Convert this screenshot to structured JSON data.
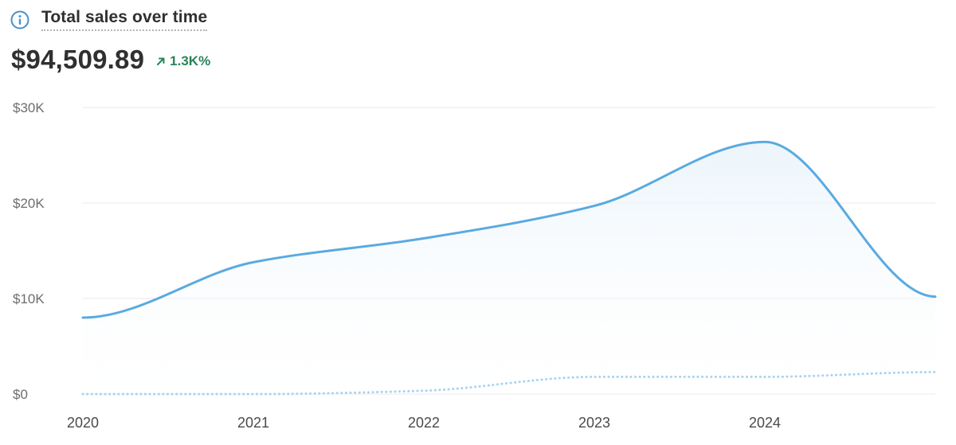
{
  "header": {
    "title": "Total sales over time"
  },
  "summary": {
    "total": "$94,509.89",
    "change": "1.3K%",
    "change_direction": "up",
    "change_color": "#29845a"
  },
  "icons": {
    "info": "info-icon",
    "change": "arrow-up-right-icon"
  },
  "colors": {
    "primary_line": "#5aaae0",
    "comparison_line": "#a9d3ef",
    "area_fill_top": "#eaf4fb",
    "grid": "#e8e8e8"
  },
  "chart_data": {
    "type": "area",
    "title": "Total sales over time",
    "xlabel": "",
    "ylabel": "",
    "ylim": [
      0,
      30000
    ],
    "grid": true,
    "y_ticks": [
      0,
      10000,
      20000,
      30000
    ],
    "y_tick_labels": [
      "$0",
      "$10K",
      "$20K",
      "$30K"
    ],
    "x_ticks": [
      "2020",
      "2021",
      "2022",
      "2023",
      "2024"
    ],
    "x": [
      0,
      1,
      2,
      3,
      4,
      5
    ],
    "series": [
      {
        "style": "solid",
        "values": [
          8000,
          13800,
          16300,
          19700,
          26400,
          10200
        ]
      },
      {
        "style": "dotted",
        "values": [
          0,
          0,
          350,
          1800,
          1800,
          2300
        ]
      }
    ]
  }
}
